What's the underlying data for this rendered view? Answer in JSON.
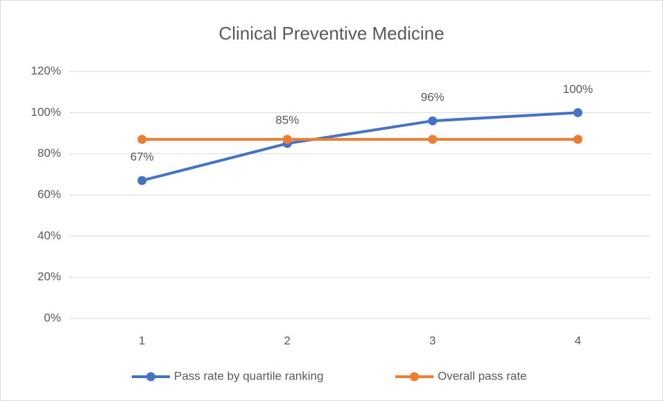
{
  "chart_data": {
    "type": "line",
    "title": "Clinical Preventive Medicine",
    "categories": [
      "1",
      "2",
      "3",
      "4"
    ],
    "series": [
      {
        "name": "Pass rate by quartile ranking",
        "color": "#4472c4",
        "values": [
          67,
          85,
          96,
          100
        ],
        "value_labels": [
          "67%",
          "85%",
          "96%",
          "100%"
        ]
      },
      {
        "name": "Overall pass rate",
        "color": "#ed7d31",
        "values": [
          87,
          87,
          87,
          87
        ]
      }
    ],
    "ylim": [
      0,
      120
    ],
    "yticks": [
      {
        "value": 0,
        "label": "0%"
      },
      {
        "value": 20,
        "label": "20%"
      },
      {
        "value": 40,
        "label": "40%"
      },
      {
        "value": 60,
        "label": "60%"
      },
      {
        "value": 80,
        "label": "80%"
      },
      {
        "value": 100,
        "label": "100%"
      },
      {
        "value": 120,
        "label": "120%"
      }
    ],
    "grid": true,
    "legend": "bottom"
  }
}
